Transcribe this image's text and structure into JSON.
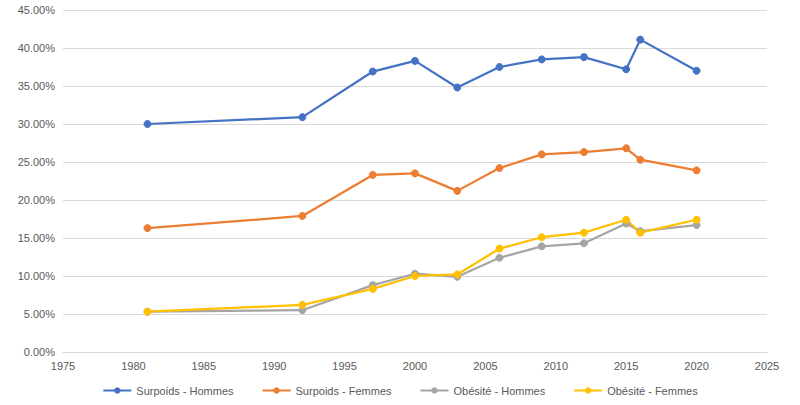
{
  "chart_data": {
    "type": "line",
    "x": [
      1981,
      1992,
      1997,
      2000,
      2003,
      2006,
      2009,
      2012,
      2015,
      2016,
      2020
    ],
    "series": [
      {
        "name": "Surpoids - Hommes",
        "color": "#4472C4",
        "marker": "circle",
        "line_style": "solid",
        "values": [
          30.0,
          30.9,
          36.9,
          38.3,
          34.8,
          37.5,
          38.5,
          38.8,
          37.2,
          41.1,
          37.0
        ]
      },
      {
        "name": "Surpoids - Femmes",
        "color": "#ED7D31",
        "marker": "circle",
        "line_style": "solid",
        "values": [
          16.3,
          17.9,
          23.3,
          23.5,
          21.2,
          24.2,
          26.0,
          26.3,
          26.8,
          25.3,
          23.9
        ]
      },
      {
        "name": "Obésité - Hommes",
        "color": "#A5A5A5",
        "marker": "circle",
        "line_style": "solid",
        "values": [
          5.3,
          5.5,
          8.8,
          10.3,
          9.9,
          12.4,
          13.9,
          14.3,
          16.9,
          15.9,
          16.7
        ]
      },
      {
        "name": "Obésité - Femmes",
        "color": "#FFC000",
        "marker": "circle",
        "line_style": "solid",
        "values": [
          5.3,
          6.2,
          8.3,
          10.0,
          10.2,
          13.6,
          15.1,
          15.7,
          17.4,
          15.7,
          17.4
        ]
      }
    ],
    "xlim": [
      1975,
      2025
    ],
    "xticks": [
      1975,
      1980,
      1985,
      1990,
      1995,
      2000,
      2005,
      2010,
      2015,
      2020,
      2025
    ],
    "ylim": [
      0,
      45
    ],
    "yticks": [
      {
        "value": 0,
        "label": "0.00%"
      },
      {
        "value": 5,
        "label": "5.00%"
      },
      {
        "value": 10,
        "label": "10.00%"
      },
      {
        "value": 15,
        "label": "15.00%"
      },
      {
        "value": 20,
        "label": "20.00%"
      },
      {
        "value": 25,
        "label": "25.00%"
      },
      {
        "value": 30,
        "label": "30.00%"
      },
      {
        "value": 35,
        "label": "35.00%"
      },
      {
        "value": 40,
        "label": "40.00%"
      },
      {
        "value": 45,
        "label": "45.00%"
      }
    ],
    "grid": true,
    "legend": "bottom"
  }
}
